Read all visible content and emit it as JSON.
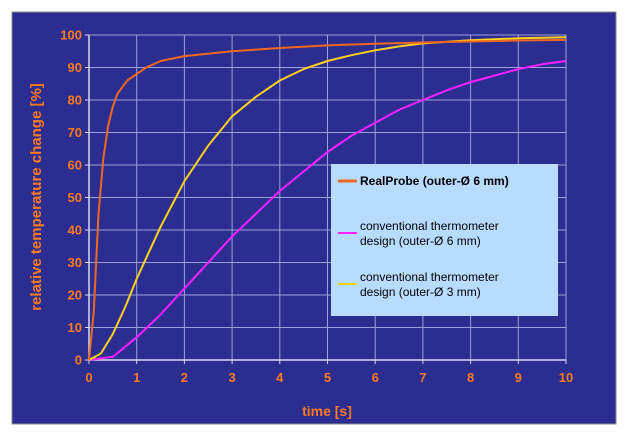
{
  "chart_data": {
    "type": "line",
    "title": "",
    "xlabel": "time [s]",
    "ylabel": "relative temperature change [%]",
    "xlim": [
      0,
      10
    ],
    "ylim": [
      0,
      100
    ],
    "xticks": [
      "0",
      "1",
      "2",
      "3",
      "4",
      "5",
      "6",
      "7",
      "8",
      "9",
      "10"
    ],
    "yticks": [
      "0",
      "10",
      "20",
      "30",
      "40",
      "50",
      "60",
      "70",
      "80",
      "90",
      "100"
    ],
    "grid": true,
    "legend_position": "right-center",
    "colors": {
      "background": "#2b2d91",
      "grid": "#9fa0d6",
      "axis_text": "#ff7a1c",
      "legend_bg": "#b7dcff"
    },
    "series": [
      {
        "name": "RealProbe (outer-Ø 6 mm)",
        "color": "#f06820",
        "bold": true,
        "points": [
          [
            0,
            0
          ],
          [
            0.1,
            15
          ],
          [
            0.2,
            45
          ],
          [
            0.3,
            62
          ],
          [
            0.4,
            72
          ],
          [
            0.5,
            78
          ],
          [
            0.6,
            82
          ],
          [
            0.8,
            86
          ],
          [
            1.0,
            88
          ],
          [
            1.2,
            90
          ],
          [
            1.5,
            92
          ],
          [
            2,
            93.5
          ],
          [
            3,
            95
          ],
          [
            4,
            96
          ],
          [
            5,
            96.8
          ],
          [
            6,
            97.3
          ],
          [
            7,
            97.7
          ],
          [
            8,
            98
          ],
          [
            9,
            98.3
          ],
          [
            10,
            98.5
          ]
        ]
      },
      {
        "name": "conventional thermometer design (outer-Ø 6 mm)",
        "color": "#ff20ff",
        "bold": false,
        "points": [
          [
            0,
            0
          ],
          [
            0.5,
            1
          ],
          [
            1,
            7
          ],
          [
            1.5,
            14
          ],
          [
            2,
            22
          ],
          [
            2.5,
            30
          ],
          [
            3,
            38
          ],
          [
            3.5,
            45
          ],
          [
            4,
            52
          ],
          [
            4.5,
            58
          ],
          [
            5,
            64
          ],
          [
            5.5,
            69
          ],
          [
            6,
            73
          ],
          [
            6.5,
            77
          ],
          [
            7,
            80
          ],
          [
            7.5,
            83
          ],
          [
            8,
            85.5
          ],
          [
            8.5,
            87.5
          ],
          [
            9,
            89.5
          ],
          [
            9.5,
            91
          ],
          [
            10,
            92
          ]
        ]
      },
      {
        "name": "conventional thermometer design (outer-Ø 3 mm)",
        "color": "#ffd21a",
        "bold": false,
        "points": [
          [
            0,
            0
          ],
          [
            0.25,
            2
          ],
          [
            0.5,
            8
          ],
          [
            0.75,
            16
          ],
          [
            1,
            25
          ],
          [
            1.25,
            33
          ],
          [
            1.5,
            41
          ],
          [
            1.75,
            48
          ],
          [
            2,
            55
          ],
          [
            2.5,
            66
          ],
          [
            3,
            75
          ],
          [
            3.5,
            81
          ],
          [
            4,
            86
          ],
          [
            4.5,
            89.5
          ],
          [
            5,
            92
          ],
          [
            5.5,
            93.8
          ],
          [
            6,
            95.3
          ],
          [
            6.5,
            96.5
          ],
          [
            7,
            97.4
          ],
          [
            8,
            98.4
          ],
          [
            9,
            99
          ],
          [
            10,
            99.3
          ]
        ]
      }
    ]
  }
}
